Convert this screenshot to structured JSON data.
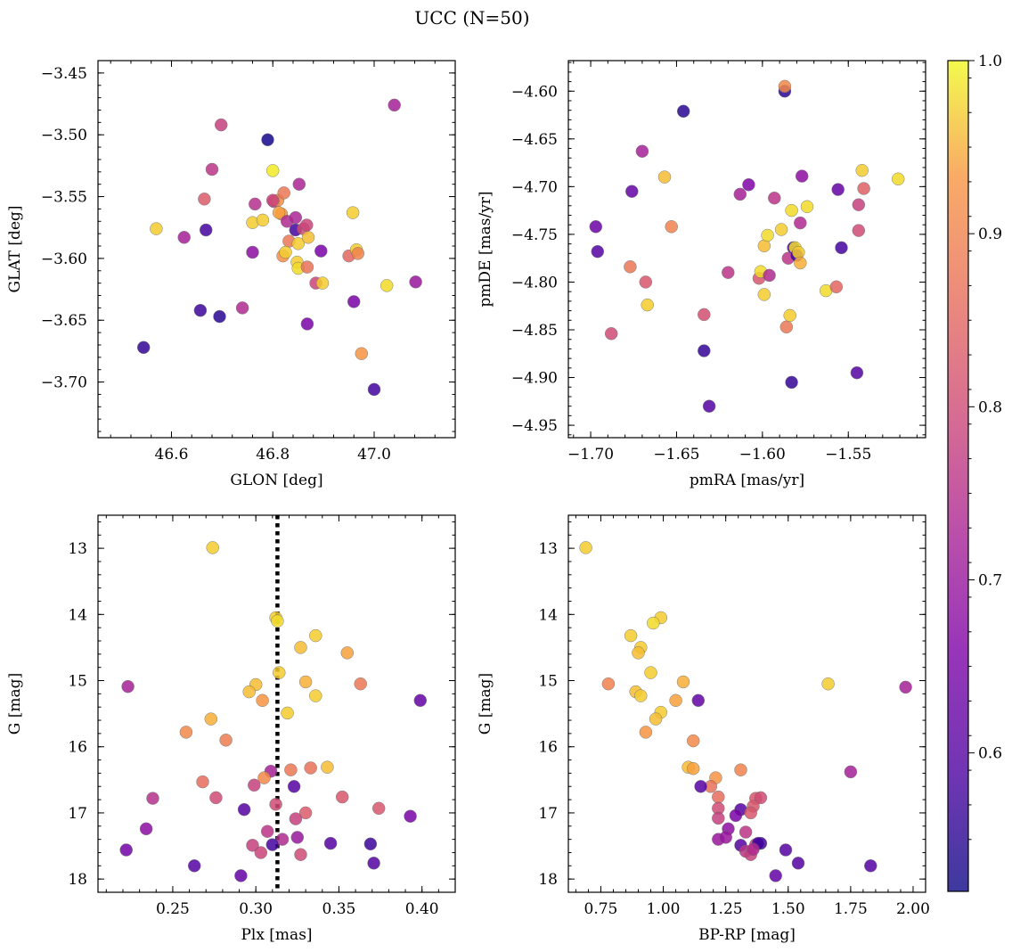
{
  "title": "UCC (N=50)",
  "colorbar": {
    "min": 0.52,
    "max": 1.0,
    "ticks": [
      0.6,
      0.7,
      0.8,
      0.9,
      1.0
    ],
    "tick_labels": [
      "0.6",
      "0.7",
      "0.8",
      "0.9",
      "1.0"
    ],
    "colormap": "plasma"
  },
  "chart_data": [
    {
      "type": "scatter",
      "xlabel": "GLON [deg]",
      "ylabel": "GLAT [deg]",
      "xlim": [
        46.455,
        47.16
      ],
      "ylim": [
        -3.745,
        -3.44
      ],
      "y_inverted": false,
      "xticks": [
        46.6,
        46.8,
        47.0
      ],
      "xtick_labels": [
        "46.6",
        "46.8",
        "47.0"
      ],
      "yticks": [
        -3.45,
        -3.5,
        -3.55,
        -3.6,
        -3.65,
        -3.7
      ],
      "ytick_labels": [
        "−3.45",
        "−3.50",
        "−3.55",
        "−3.60",
        "−3.65",
        "−3.70"
      ],
      "points": [
        [
          46.57,
          -3.576,
          0.97
        ],
        [
          46.625,
          -3.583,
          0.72
        ],
        [
          46.665,
          -3.552,
          0.83
        ],
        [
          46.668,
          -3.577,
          0.58
        ],
        [
          46.68,
          -3.528,
          0.76
        ],
        [
          46.698,
          -3.492,
          0.78
        ],
        [
          46.657,
          -3.642,
          0.57
        ],
        [
          46.695,
          -3.647,
          0.55
        ],
        [
          46.545,
          -3.672,
          0.56
        ],
        [
          46.74,
          -3.64,
          0.74
        ],
        [
          46.76,
          -3.595,
          0.68
        ],
        [
          46.765,
          -3.556,
          0.75
        ],
        [
          46.76,
          -3.571,
          0.97
        ],
        [
          46.78,
          -3.569,
          0.97
        ],
        [
          46.79,
          -3.504,
          0.53
        ],
        [
          46.8,
          -3.529,
          0.99
        ],
        [
          46.802,
          -3.554,
          0.78
        ],
        [
          46.81,
          -3.553,
          0.92
        ],
        [
          46.817,
          -3.564,
          0.93
        ],
        [
          46.812,
          -3.563,
          0.94
        ],
        [
          46.822,
          -3.547,
          0.88
        ],
        [
          46.828,
          -3.57,
          0.74
        ],
        [
          46.832,
          -3.586,
          0.88
        ],
        [
          46.82,
          -3.598,
          0.92
        ],
        [
          46.825,
          -3.595,
          0.97
        ],
        [
          46.845,
          -3.567,
          0.73
        ],
        [
          46.845,
          -3.577,
          0.58
        ],
        [
          46.852,
          -3.54,
          0.73
        ],
        [
          46.85,
          -3.588,
          0.97
        ],
        [
          46.848,
          -3.603,
          0.97
        ],
        [
          46.85,
          -3.608,
          0.98
        ],
        [
          46.86,
          -3.576,
          0.8
        ],
        [
          46.867,
          -3.573,
          0.79
        ],
        [
          46.87,
          -3.583,
          0.96
        ],
        [
          46.868,
          -3.607,
          0.87
        ],
        [
          46.868,
          -3.653,
          0.65
        ],
        [
          46.885,
          -3.62,
          0.79
        ],
        [
          46.895,
          -3.594,
          0.65
        ],
        [
          46.898,
          -3.62,
          0.97
        ],
        [
          46.95,
          -3.598,
          0.85
        ],
        [
          46.958,
          -3.563,
          0.97
        ],
        [
          46.96,
          -3.635,
          0.65
        ],
        [
          46.965,
          -3.593,
          0.97
        ],
        [
          46.968,
          -3.596,
          0.9
        ],
        [
          46.975,
          -3.677,
          0.93
        ],
        [
          47.0,
          -3.706,
          0.58
        ],
        [
          47.025,
          -3.622,
          0.98
        ],
        [
          47.04,
          -3.476,
          0.72
        ],
        [
          47.082,
          -3.619,
          0.7
        ],
        [
          46.8,
          -3.553,
          0.79
        ]
      ]
    },
    {
      "type": "scatter",
      "xlabel": "pmRA [mas/yr]",
      "ylabel": "pmDE [mas/yr]",
      "xlim": [
        -1.713,
        -1.505
      ],
      "ylim": [
        -4.963,
        -4.568
      ],
      "y_inverted": false,
      "xticks": [
        -1.7,
        -1.65,
        -1.6,
        -1.55
      ],
      "xtick_labels": [
        "−1.70",
        "−1.65",
        "−1.60",
        "−1.55"
      ],
      "yticks": [
        -4.6,
        -4.65,
        -4.7,
        -4.75,
        -4.8,
        -4.85,
        -4.9,
        -4.95
      ],
      "ytick_labels": [
        "−4.60",
        "−4.65",
        "−4.70",
        "−4.75",
        "−4.80",
        "−4.85",
        "−4.90",
        "−4.95"
      ],
      "points": [
        [
          -1.697,
          -4.742,
          0.63
        ],
        [
          -1.696,
          -4.768,
          0.6
        ],
        [
          -1.688,
          -4.854,
          0.8
        ],
        [
          -1.677,
          -4.784,
          0.88
        ],
        [
          -1.676,
          -4.705,
          0.62
        ],
        [
          -1.67,
          -4.663,
          0.72
        ],
        [
          -1.668,
          -4.8,
          0.82
        ],
        [
          -1.667,
          -4.824,
          0.97
        ],
        [
          -1.657,
          -4.69,
          0.96
        ],
        [
          -1.653,
          -4.742,
          0.9
        ],
        [
          -1.646,
          -4.621,
          0.55
        ],
        [
          -1.634,
          -4.834,
          0.81
        ],
        [
          -1.634,
          -4.872,
          0.56
        ],
        [
          -1.631,
          -4.93,
          0.6
        ],
        [
          -1.62,
          -4.79,
          0.76
        ],
        [
          -1.613,
          -4.708,
          0.72
        ],
        [
          -1.608,
          -4.698,
          0.66
        ],
        [
          -1.602,
          -4.796,
          0.82
        ],
        [
          -1.601,
          -4.789,
          0.98
        ],
        [
          -1.599,
          -4.762,
          0.96
        ],
        [
          -1.599,
          -4.813,
          0.97
        ],
        [
          -1.597,
          -4.751,
          0.98
        ],
        [
          -1.596,
          -4.793,
          0.74
        ],
        [
          -1.593,
          -4.712,
          0.76
        ],
        [
          -1.589,
          -4.745,
          0.97
        ],
        [
          -1.587,
          -4.6,
          0.55
        ],
        [
          -1.587,
          -4.595,
          0.91
        ],
        [
          -1.586,
          -4.847,
          0.88
        ],
        [
          -1.585,
          -4.775,
          0.76
        ],
        [
          -1.584,
          -4.835,
          0.97
        ],
        [
          -1.583,
          -4.905,
          0.56
        ],
        [
          -1.583,
          -4.725,
          0.98
        ],
        [
          -1.582,
          -4.764,
          0.58
        ],
        [
          -1.581,
          -4.764,
          0.98
        ],
        [
          -1.58,
          -4.772,
          0.58
        ],
        [
          -1.579,
          -4.769,
          0.97
        ],
        [
          -1.578,
          -4.78,
          0.95
        ],
        [
          -1.578,
          -4.738,
          0.74
        ],
        [
          -1.577,
          -4.689,
          0.68
        ],
        [
          -1.574,
          -4.721,
          0.98
        ],
        [
          -1.563,
          -4.809,
          0.98
        ],
        [
          -1.557,
          -4.805,
          0.85
        ],
        [
          -1.556,
          -4.703,
          0.62
        ],
        [
          -1.554,
          -4.764,
          0.58
        ],
        [
          -1.545,
          -4.895,
          0.6
        ],
        [
          -1.544,
          -4.719,
          0.78
        ],
        [
          -1.544,
          -4.746,
          0.8
        ],
        [
          -1.542,
          -4.683,
          0.97
        ],
        [
          -1.541,
          -4.702,
          0.84
        ],
        [
          -1.521,
          -4.692,
          0.98
        ]
      ]
    },
    {
      "type": "scatter",
      "xlabel": "Plx [mas]",
      "ylabel": "G [mag]",
      "xlim": [
        0.205,
        0.42
      ],
      "ylim": [
        18.2,
        12.5
      ],
      "y_inverted": true,
      "xticks": [
        0.25,
        0.3,
        0.35,
        0.4
      ],
      "xtick_labels": [
        "0.25",
        "0.30",
        "0.35",
        "0.40"
      ],
      "yticks": [
        13,
        14,
        15,
        16,
        17,
        18
      ],
      "ytick_labels": [
        "13",
        "14",
        "15",
        "16",
        "17",
        "18"
      ],
      "vline": 0.313,
      "points": [
        [
          0.274,
          12.99,
          0.97
        ],
        [
          0.312,
          14.05,
          0.97
        ],
        [
          0.313,
          14.1,
          0.98
        ],
        [
          0.336,
          14.32,
          0.97
        ],
        [
          0.327,
          14.5,
          0.96
        ],
        [
          0.355,
          14.58,
          0.94
        ],
        [
          0.314,
          14.88,
          0.97
        ],
        [
          0.223,
          15.09,
          0.72
        ],
        [
          0.3,
          15.06,
          0.96
        ],
        [
          0.296,
          15.17,
          0.96
        ],
        [
          0.363,
          15.05,
          0.88
        ],
        [
          0.33,
          15.02,
          0.95
        ],
        [
          0.336,
          15.23,
          0.97
        ],
        [
          0.304,
          15.3,
          0.93
        ],
        [
          0.399,
          15.3,
          0.62
        ],
        [
          0.319,
          15.49,
          0.97
        ],
        [
          0.273,
          15.58,
          0.95
        ],
        [
          0.258,
          15.78,
          0.91
        ],
        [
          0.282,
          15.9,
          0.89
        ],
        [
          0.309,
          16.37,
          0.72
        ],
        [
          0.321,
          16.35,
          0.88
        ],
        [
          0.333,
          16.32,
          0.87
        ],
        [
          0.343,
          16.31,
          0.96
        ],
        [
          0.305,
          16.47,
          0.91
        ],
        [
          0.268,
          16.53,
          0.86
        ],
        [
          0.299,
          16.58,
          0.78
        ],
        [
          0.323,
          16.6,
          0.6
        ],
        [
          0.238,
          16.78,
          0.75
        ],
        [
          0.276,
          16.77,
          0.8
        ],
        [
          0.352,
          16.76,
          0.82
        ],
        [
          0.293,
          16.95,
          0.6
        ],
        [
          0.312,
          16.87,
          0.8
        ],
        [
          0.374,
          16.93,
          0.82
        ],
        [
          0.33,
          17.0,
          0.83
        ],
        [
          0.393,
          17.05,
          0.65
        ],
        [
          0.324,
          17.09,
          0.78
        ],
        [
          0.234,
          17.24,
          0.68
        ],
        [
          0.307,
          17.28,
          0.76
        ],
        [
          0.316,
          17.4,
          0.74
        ],
        [
          0.325,
          17.37,
          0.7
        ],
        [
          0.298,
          17.49,
          0.78
        ],
        [
          0.31,
          17.48,
          0.58
        ],
        [
          0.345,
          17.46,
          0.6
        ],
        [
          0.369,
          17.47,
          0.57
        ],
        [
          0.222,
          17.56,
          0.64
        ],
        [
          0.303,
          17.6,
          0.79
        ],
        [
          0.327,
          17.63,
          0.8
        ],
        [
          0.371,
          17.76,
          0.6
        ],
        [
          0.263,
          17.8,
          0.6
        ],
        [
          0.291,
          17.95,
          0.62
        ]
      ]
    },
    {
      "type": "scatter",
      "xlabel": "BP-RP [mag]",
      "ylabel": "G [mag]",
      "xlim": [
        0.62,
        2.05
      ],
      "ylim": [
        18.2,
        12.5
      ],
      "y_inverted": true,
      "xticks": [
        0.75,
        1.0,
        1.25,
        1.5,
        1.75,
        2.0
      ],
      "xtick_labels": [
        "0.75",
        "1.00",
        "1.25",
        "1.50",
        "1.75",
        "2.00"
      ],
      "yticks": [
        13,
        14,
        15,
        16,
        17,
        18
      ],
      "ytick_labels": [
        "13",
        "14",
        "15",
        "16",
        "17",
        "18"
      ],
      "points": [
        [
          0.69,
          12.99,
          0.97
        ],
        [
          0.99,
          14.05,
          0.97
        ],
        [
          0.96,
          14.13,
          0.98
        ],
        [
          0.87,
          14.32,
          0.97
        ],
        [
          0.91,
          14.5,
          0.97
        ],
        [
          0.9,
          14.58,
          0.96
        ],
        [
          0.95,
          14.88,
          0.97
        ],
        [
          0.78,
          15.05,
          0.9
        ],
        [
          0.89,
          15.17,
          0.96
        ],
        [
          0.91,
          15.23,
          0.97
        ],
        [
          1.08,
          15.02,
          0.95
        ],
        [
          1.05,
          15.3,
          0.94
        ],
        [
          0.99,
          15.48,
          0.97
        ],
        [
          0.97,
          15.58,
          0.96
        ],
        [
          1.14,
          15.3,
          0.62
        ],
        [
          0.93,
          15.78,
          0.93
        ],
        [
          1.12,
          15.91,
          0.91
        ],
        [
          1.1,
          16.31,
          0.96
        ],
        [
          1.12,
          16.33,
          0.94
        ],
        [
          1.31,
          16.35,
          0.9
        ],
        [
          1.21,
          16.47,
          0.93
        ],
        [
          1.19,
          16.6,
          0.87
        ],
        [
          1.15,
          16.6,
          0.6
        ],
        [
          1.75,
          16.38,
          0.72
        ],
        [
          1.22,
          16.76,
          0.86
        ],
        [
          1.37,
          16.78,
          0.82
        ],
        [
          1.39,
          16.77,
          0.8
        ],
        [
          1.22,
          16.93,
          0.8
        ],
        [
          1.36,
          16.9,
          0.82
        ],
        [
          1.31,
          16.95,
          0.6
        ],
        [
          1.35,
          17.0,
          0.82
        ],
        [
          1.29,
          17.04,
          0.65
        ],
        [
          1.22,
          17.08,
          0.78
        ],
        [
          1.26,
          17.24,
          0.68
        ],
        [
          1.33,
          17.29,
          0.76
        ],
        [
          1.22,
          17.4,
          0.7
        ],
        [
          1.25,
          17.37,
          0.7
        ],
        [
          1.31,
          17.49,
          0.6
        ],
        [
          1.37,
          17.48,
          0.78
        ],
        [
          1.39,
          17.46,
          0.57
        ],
        [
          1.38,
          17.46,
          0.58
        ],
        [
          1.33,
          17.58,
          0.76
        ],
        [
          1.35,
          17.63,
          0.78
        ],
        [
          1.49,
          17.56,
          0.6
        ],
        [
          1.54,
          17.76,
          0.6
        ],
        [
          1.45,
          17.95,
          0.62
        ],
        [
          1.83,
          17.8,
          0.6
        ],
        [
          1.66,
          15.05,
          0.97
        ],
        [
          1.97,
          15.1,
          0.72
        ],
        [
          1.36,
          17.55,
          0.74
        ]
      ]
    }
  ]
}
